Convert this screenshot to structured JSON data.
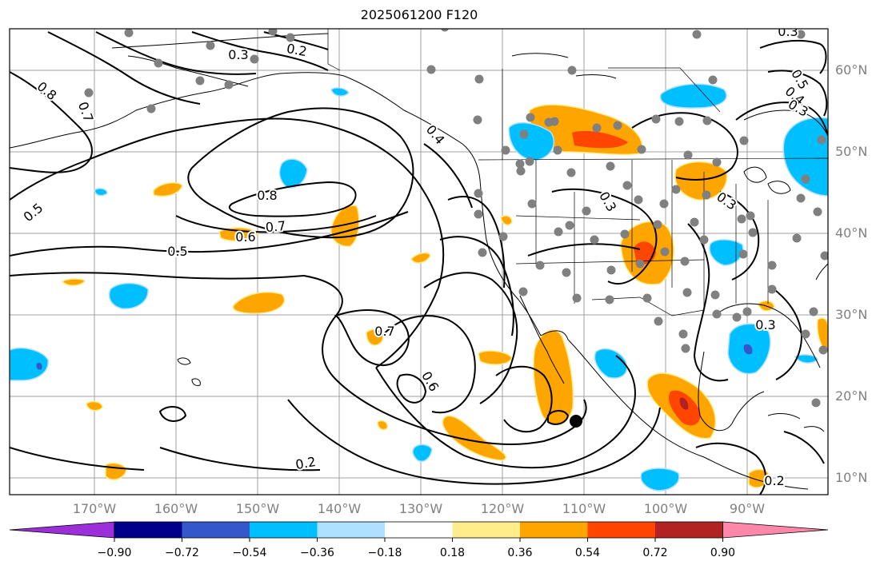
{
  "title": "2025061200 F120",
  "lat_labels": [
    {
      "text": "60°N",
      "lat": 60
    },
    {
      "text": "50°N",
      "lat": 50
    },
    {
      "text": "40°N",
      "lat": 40
    },
    {
      "text": "30°N",
      "lat": 30
    },
    {
      "text": "20°N",
      "lat": 20
    },
    {
      "text": "10°N",
      "lat": 10
    }
  ],
  "lon_labels": [
    {
      "text": "170°W",
      "lon": -170
    },
    {
      "text": "160°W",
      "lon": -160
    },
    {
      "text": "150°W",
      "lon": -150
    },
    {
      "text": "140°W",
      "lon": -140
    },
    {
      "text": "130°W",
      "lon": -130
    },
    {
      "text": "120°W",
      "lon": -120
    },
    {
      "text": "110°W",
      "lon": -110
    },
    {
      "text": "100°W",
      "lon": -100
    },
    {
      "text": "90°W",
      "lon": -90
    }
  ],
  "contour_labels": [
    "0.2",
    "0.3",
    "0.4",
    "0.5",
    "0.6",
    "0.7",
    "0.8"
  ],
  "colorbar": {
    "ticks": [
      "−0.90",
      "−0.72",
      "−0.54",
      "−0.36",
      "−0.18",
      "0.18",
      "0.36",
      "0.54",
      "0.72",
      "0.90"
    ],
    "colors": [
      "#9b30d9",
      "#00008b",
      "#3457cc",
      "#00bfff",
      "#aee0ff",
      "#ffffff",
      "#ffec8b",
      "#ffa500",
      "#ff4500",
      "#b22222",
      "#ff88aa"
    ]
  },
  "colors": {
    "land_outline": "#000000",
    "grid": "#a0a0a0",
    "axis_label": "#808080",
    "station": "#808080"
  }
}
